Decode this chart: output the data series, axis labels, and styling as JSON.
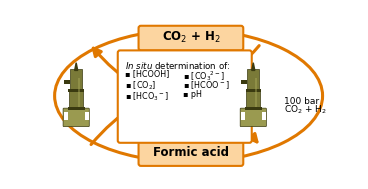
{
  "orange_border": "#e07800",
  "light_orange_fill": "#fcd5a0",
  "formic_acid_label": "Formic acid",
  "co2_h2_label": "CO$_2$ + H$_2$",
  "side_label_line1": "100 bar",
  "side_label_line2": "CO$_2$ + H$_2$",
  "box_title": "$\\it{In\\ situ}$ determination of:",
  "col1_items": [
    "[HCOOH]",
    "[CO$_2$]",
    "[HCO$_3$$^-$]"
  ],
  "col2_items": [
    "[CO$_3$$^{2-}$]",
    "[HCOO$^-$]",
    "pH"
  ],
  "arrow_color": "#e07800",
  "text_color": "#000000",
  "figsize": [
    3.68,
    1.89
  ],
  "dpi": 100
}
